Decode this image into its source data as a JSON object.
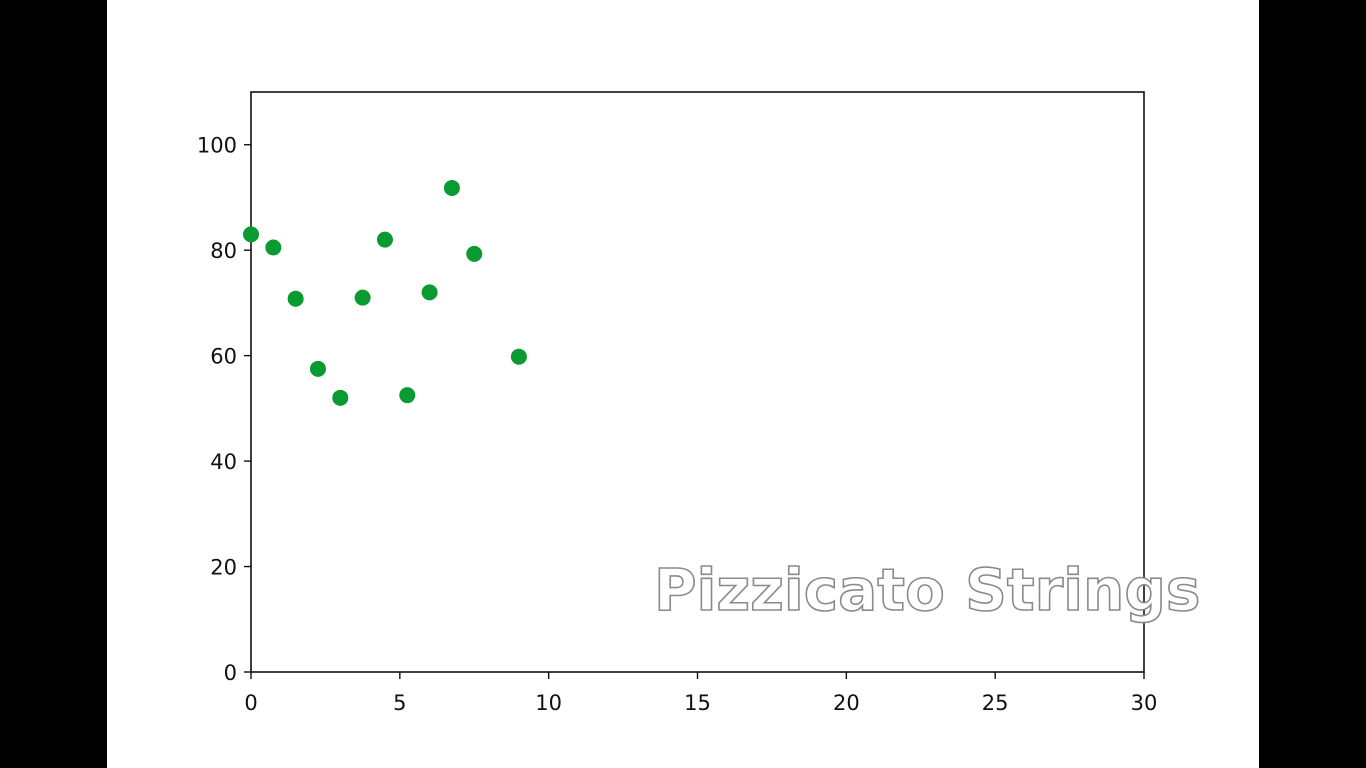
{
  "chart_data": {
    "type": "scatter",
    "title": "",
    "xlabel": "",
    "ylabel": "",
    "xlim": [
      0,
      30
    ],
    "ylim": [
      0,
      110
    ],
    "x_ticks": [
      "0",
      "5",
      "10",
      "15",
      "20",
      "25",
      "30"
    ],
    "y_ticks": [
      "0",
      "20",
      "40",
      "60",
      "80",
      "100"
    ],
    "grid": false,
    "marker_color": "#0a9a32",
    "series": [
      {
        "points": [
          {
            "x": 0.0,
            "y": 83
          },
          {
            "x": 0.75,
            "y": 80.5
          },
          {
            "x": 1.5,
            "y": 70.8
          },
          {
            "x": 2.25,
            "y": 57.5
          },
          {
            "x": 3.0,
            "y": 52
          },
          {
            "x": 3.75,
            "y": 71
          },
          {
            "x": 4.5,
            "y": 82
          },
          {
            "x": 5.25,
            "y": 52.5
          },
          {
            "x": 6.0,
            "y": 72
          },
          {
            "x": 6.75,
            "y": 91.8
          },
          {
            "x": 7.5,
            "y": 79.3
          },
          {
            "x": 9.0,
            "y": 59.8
          }
        ]
      }
    ]
  },
  "overlay": {
    "watermark_text": "Pizzicato Strings"
  }
}
